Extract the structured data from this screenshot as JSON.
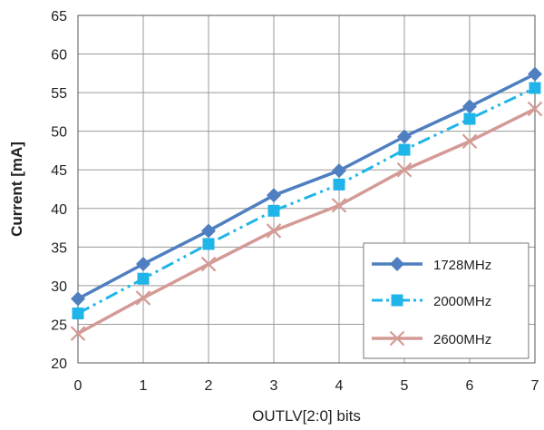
{
  "chart_data": {
    "type": "line",
    "title": "",
    "xlabel": "OUTLV[2:0] bits",
    "ylabel": "Current  [mA]",
    "x": [
      0,
      1,
      2,
      3,
      4,
      5,
      6,
      7
    ],
    "xlim": [
      0,
      7
    ],
    "ylim": [
      20,
      65
    ],
    "yticks": [
      20,
      25,
      30,
      35,
      40,
      45,
      50,
      55,
      60,
      65
    ],
    "grid": true,
    "legend_position": "bottom-right",
    "series": [
      {
        "name": "1728MHz",
        "color": "#4f7fc0",
        "marker": "diamond",
        "line": "solid",
        "values": [
          28.3,
          32.8,
          37.1,
          41.7,
          44.9,
          49.3,
          53.2,
          57.4
        ]
      },
      {
        "name": "2000MHz",
        "color": "#1fb5e8",
        "marker": "square",
        "line": "dash-dot-dot",
        "values": [
          26.4,
          30.9,
          35.4,
          39.7,
          43.1,
          47.6,
          51.6,
          55.6
        ]
      },
      {
        "name": "2600MHz",
        "color": "#d49a95",
        "marker": "x",
        "line": "solid",
        "values": [
          23.8,
          28.4,
          32.8,
          37.1,
          40.4,
          45.0,
          48.7,
          52.9
        ]
      }
    ]
  }
}
